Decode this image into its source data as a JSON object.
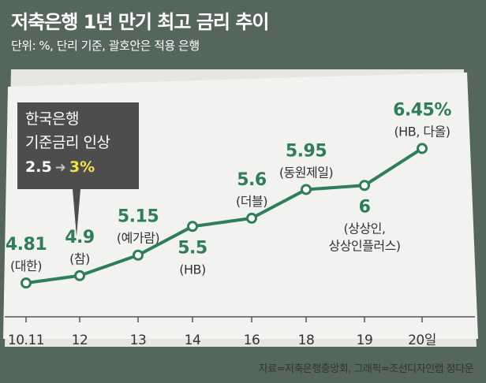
{
  "header": {
    "title": "저축은행 1년 만기 최고 금리 추이",
    "subtitle": "단위: %, 단리 기준, 괄호안은 적용 은행"
  },
  "callout": {
    "line1": "한국은행",
    "line2": "기준금리 인상",
    "from": "2.5",
    "to": "3%"
  },
  "source": "자료=저축은행중앙회, 그래픽=조선디자인랩 정다운",
  "colors": {
    "background": "#55675c",
    "paper": "#f2f2f0",
    "line": "#2e7d5b",
    "value": "#2e7d5b",
    "callout": "#4d4d4d",
    "highlight": "#f3e24a"
  },
  "chart_data": {
    "type": "line",
    "title": "저축은행 1년 만기 최고 금리 추이",
    "categories": [
      "10.11",
      "12",
      "13",
      "14",
      "16",
      "18",
      "19",
      "20일"
    ],
    "values": [
      4.81,
      4.9,
      5.15,
      5.5,
      5.6,
      5.95,
      6,
      6.45
    ],
    "value_labels": [
      "4.81",
      "4.9",
      "5.15",
      "5.5",
      "5.6",
      "5.95",
      "6",
      "6.45%"
    ],
    "bank_labels": [
      [
        "(대한)"
      ],
      [
        "(참)"
      ],
      [
        "(예가람)"
      ],
      [
        "(HB)"
      ],
      [
        "(더블)"
      ],
      [
        "(동원제일)"
      ],
      [
        "(상상인,",
        "상상인플러스)"
      ],
      [
        "(HB, 다올)"
      ]
    ],
    "label_above": [
      true,
      true,
      true,
      false,
      true,
      true,
      false,
      true
    ],
    "ylim": [
      4.6,
      6.55
    ],
    "grid": false,
    "legend": "none"
  }
}
